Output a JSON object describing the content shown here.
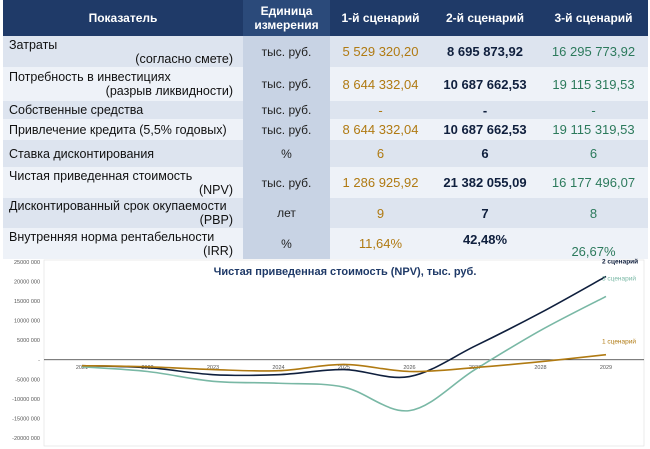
{
  "table": {
    "headers": {
      "indicator": "Показатель",
      "unit": "Единица измерения",
      "s1": "1-й сценарий",
      "s2": "2-й сценарий",
      "s3": "3-й сценарий"
    },
    "rows": [
      {
        "label1": "Затраты",
        "label2": "(согласно смете)",
        "unit": "тыс. руб.",
        "s1": "5 529 320,20",
        "s2": "8 695 873,92",
        "s3": "16 295 773,92"
      },
      {
        "label1": "Потребность в инвестициях",
        "label2": "(разрыв ликвидности)",
        "unit": "тыс. руб.",
        "s1": "8 644 332,04",
        "s2": "10 687 662,53",
        "s3": "19 115 319,53"
      },
      {
        "label1": "Собственные средства",
        "label2": "",
        "unit": "тыс. руб.",
        "s1": "-",
        "s2": "-",
        "s3": "-"
      },
      {
        "label1": "Привлечение кредита (5,5% годовых)",
        "label2": "",
        "unit": "тыс. руб.",
        "s1": "8 644 332,04",
        "s2": "10 687 662,53",
        "s3": "19 115 319,53"
      },
      {
        "label1": "Ставка дисконтирования",
        "label2": "",
        "unit": "%",
        "s1": "6",
        "s2": "6",
        "s3": "6"
      },
      {
        "label1": "Чистая приведенная стоимость",
        "label2": "(NPV)",
        "unit": "тыс. руб.",
        "s1": "1 286 925,92",
        "s2": "21 382 055,09",
        "s3": "16 177 496,07"
      },
      {
        "label1": "Дисконтированный срок окупаемости",
        "label2": "(PBP)",
        "unit": "лет",
        "s1": "9",
        "s2": "7",
        "s3": "8"
      },
      {
        "label1": "Внутренняя норма рентабельности",
        "label2": "(IRR)",
        "unit": "%",
        "s1": "11,64%",
        "s2": "42,48%",
        "s3": "26,67%"
      }
    ]
  },
  "chart_data": {
    "type": "line",
    "title": "Чистая приведенная стоимость (NPV), тыс. руб.",
    "x": [
      "2021",
      "2022",
      "2023",
      "2024",
      "2025",
      "2026",
      "2027",
      "2028",
      "2029"
    ],
    "y_ticks": [
      "25000 000",
      "20000 000",
      "15000 000",
      "10000 000",
      "5000 000",
      "-",
      "-5000 000",
      "-10000 000",
      "-15000 000",
      "-20000 000"
    ],
    "ylim": [
      -20000000,
      25000000
    ],
    "grid": false,
    "series": [
      {
        "name": "2 сценарий",
        "color": "#0f1f3d",
        "values": [
          -1500000,
          -2000000,
          -3800000,
          -3800000,
          -2500000,
          -4300000,
          3500000,
          12000000,
          21300000
        ]
      },
      {
        "name": "3 сценарий",
        "color": "#79b8a5",
        "values": [
          -1800000,
          -3000000,
          -5500000,
          -6000000,
          -7000000,
          -13000000,
          -2500000,
          7500000,
          16200000
        ]
      },
      {
        "name": "1 сценарий",
        "color": "#b07a12",
        "values": [
          -1500000,
          -1800000,
          -2500000,
          -2800000,
          -1200000,
          -3000000,
          -2000000,
          -500000,
          1300000
        ]
      }
    ]
  }
}
